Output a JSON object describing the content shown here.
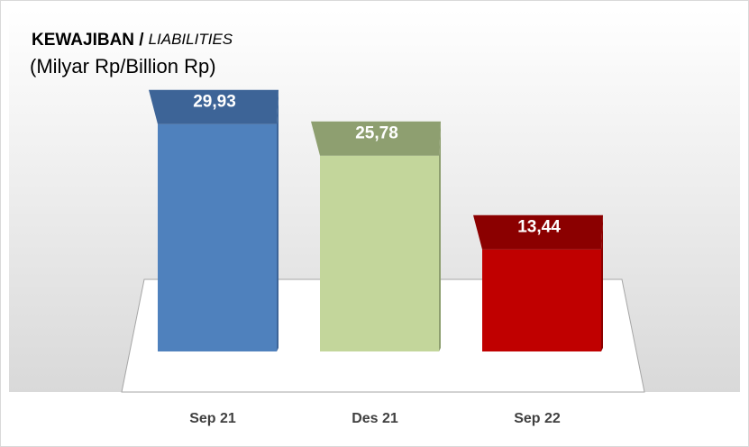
{
  "chart_data": {
    "type": "bar3d",
    "title": [
      "KEWAJIBAN /",
      "LIABILITIES"
    ],
    "subtitle": "(Milyar Rp/Billion Rp)",
    "categories": [
      "Sep 21",
      "Des 21",
      "Sep 22"
    ],
    "values": [
      29.93,
      25.78,
      13.44
    ],
    "value_labels": [
      "29,93",
      "25,78",
      "13,44"
    ],
    "colors": [
      "#4f81bd",
      "#c3d69b",
      "#c00000"
    ],
    "top_colors": [
      "#3d6497",
      "#8e9f70",
      "#8b0000"
    ],
    "ylim": [
      0,
      35
    ]
  }
}
